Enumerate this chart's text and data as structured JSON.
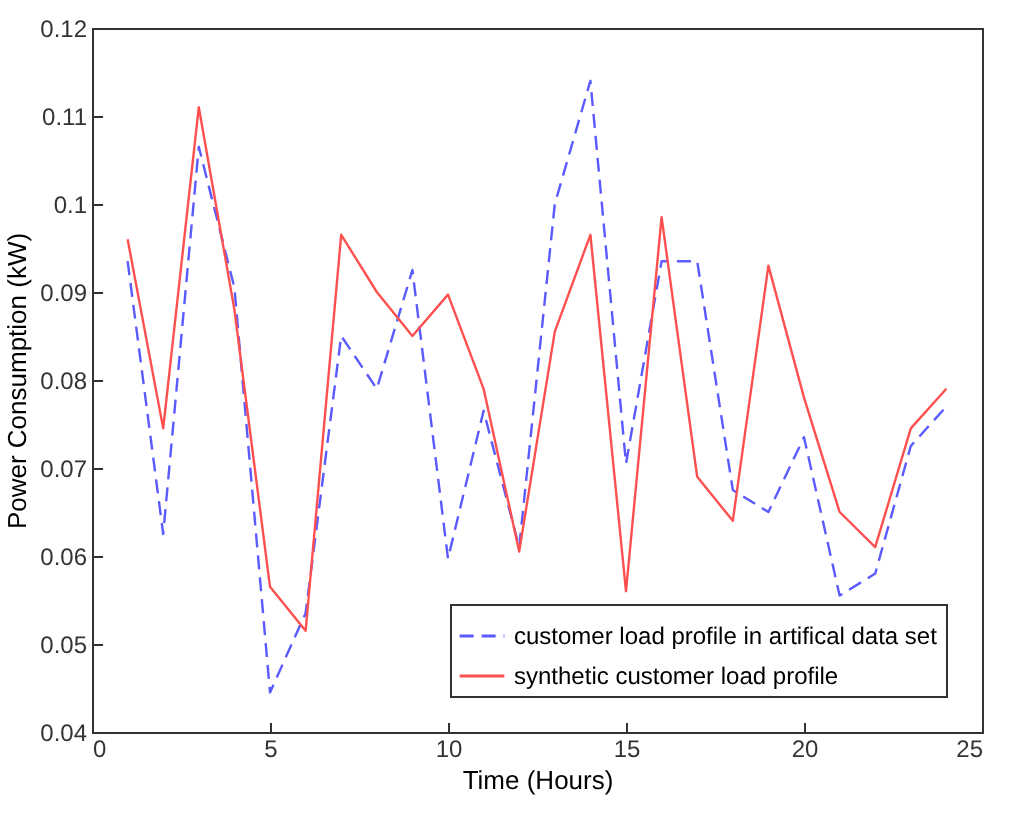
{
  "chart_data": {
    "type": "line",
    "xlabel": "Time (Hours)",
    "ylabel": "Power Consumption (kW)",
    "x": [
      1,
      2,
      3,
      4,
      5,
      6,
      7,
      8,
      9,
      10,
      11,
      12,
      13,
      14,
      15,
      16,
      17,
      18,
      19,
      20,
      21,
      22,
      23,
      24
    ],
    "series": [
      {
        "name": "customer load profile in artifical data set",
        "color": "#5a5aff",
        "line_style": "dashed",
        "values": [
          0.0935,
          0.0625,
          0.1065,
          0.0905,
          0.0445,
          0.0535,
          0.085,
          0.079,
          0.0925,
          0.0597,
          0.0765,
          0.061,
          0.1,
          0.114,
          0.0705,
          0.0935,
          0.0935,
          0.0675,
          0.065,
          0.0735,
          0.0555,
          0.058,
          0.0725,
          0.077
        ]
      },
      {
        "name": "synthetic customer load profile",
        "color": "#ff5050",
        "line_style": "solid",
        "values": [
          0.096,
          0.0745,
          0.111,
          0.088,
          0.0565,
          0.0515,
          0.0965,
          0.09,
          0.085,
          0.0897,
          0.079,
          0.0605,
          0.0855,
          0.0965,
          0.056,
          0.0985,
          0.069,
          0.064,
          0.093,
          0.078,
          0.065,
          0.061,
          0.0745,
          0.079
        ]
      }
    ],
    "xlim": [
      0,
      25
    ],
    "xticks": [
      0,
      5,
      10,
      15,
      20,
      25
    ],
    "ylim": [
      0.04,
      0.12
    ],
    "yticks": [
      0.04,
      0.05,
      0.06,
      0.07,
      0.08,
      0.09,
      0.1,
      0.11,
      0.12
    ],
    "grid": false,
    "legend": "bottom right",
    "marker": "none"
  }
}
